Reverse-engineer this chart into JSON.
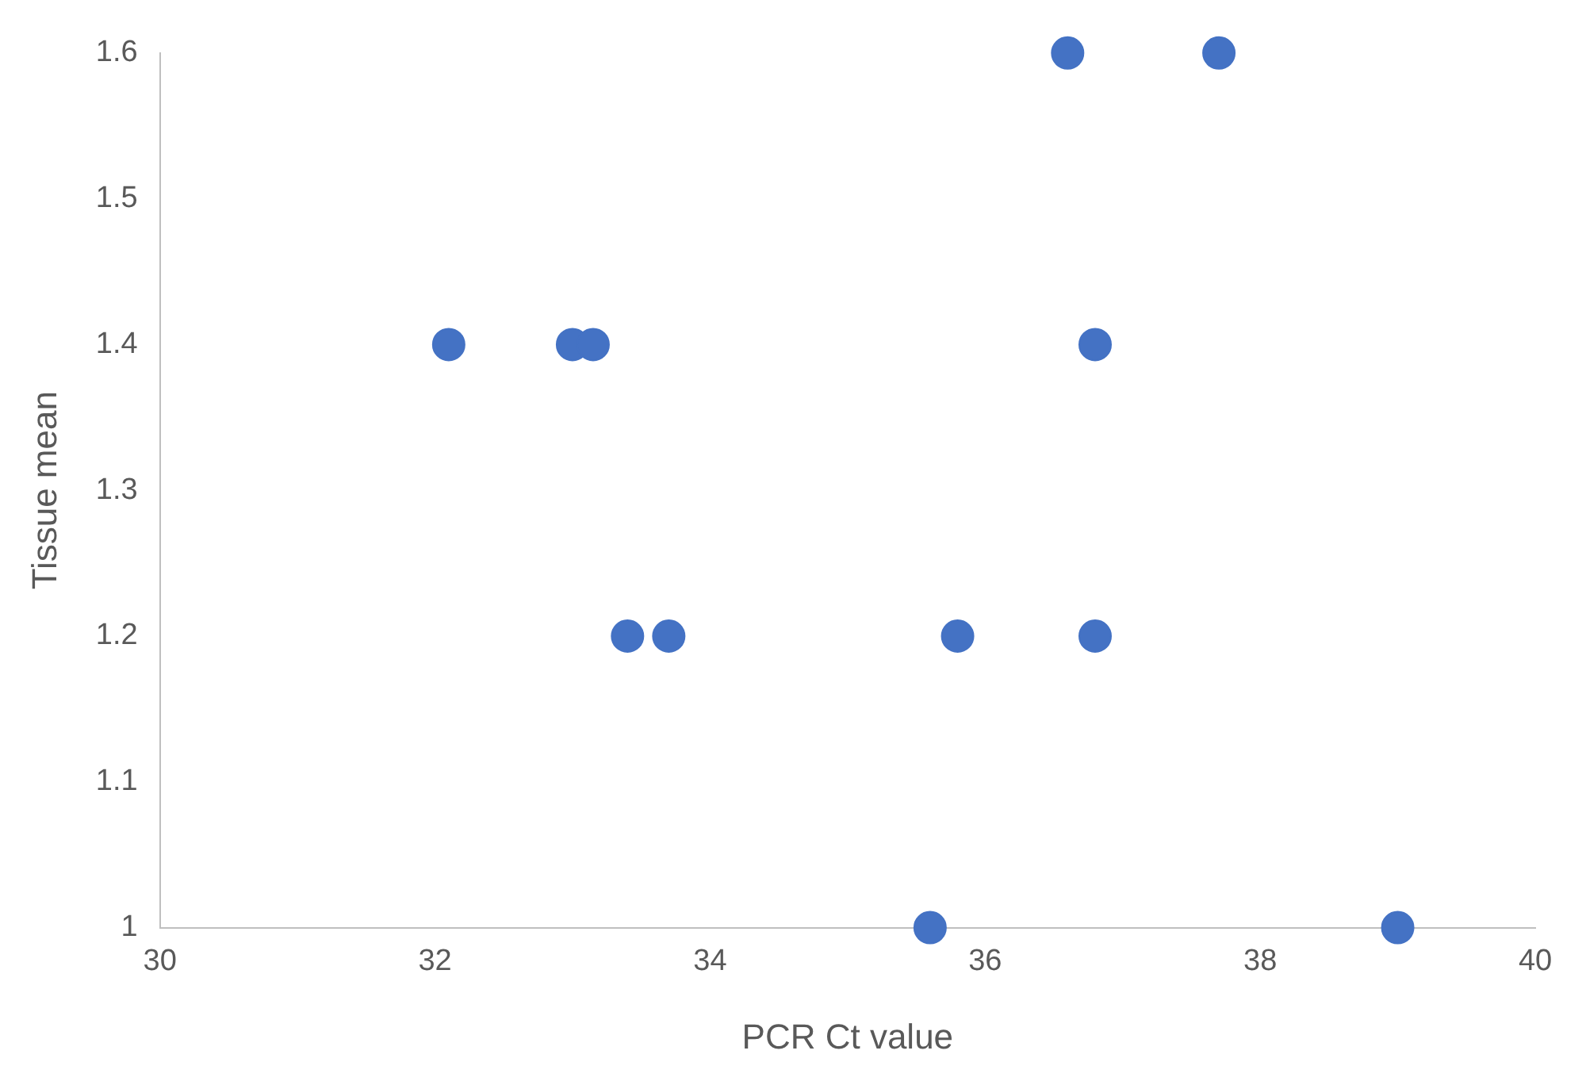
{
  "chart_data": {
    "type": "scatter",
    "xlabel": "PCR Ct value",
    "ylabel": "Tissue mean",
    "series": [
      {
        "color": "#4472c4",
        "x": [
          36.6,
          37.7,
          32.1,
          33.0,
          33.15,
          36.8,
          33.4,
          33.7,
          35.8,
          36.8,
          35.6,
          39.0
        ],
        "values": [
          1.6,
          1.6,
          1.4,
          1.4,
          1.4,
          1.4,
          1.2,
          1.2,
          1.2,
          1.2,
          1.0,
          1.0
        ]
      }
    ],
    "xlim": [
      30,
      40
    ],
    "xticks": [
      30,
      32,
      34,
      36,
      38,
      40
    ],
    "ylim": [
      1,
      1.6
    ],
    "yticks": [
      1,
      1.1,
      1.2,
      1.3,
      1.4,
      1.5,
      1.6
    ],
    "grid": false,
    "legend": false,
    "marker": "circle"
  }
}
